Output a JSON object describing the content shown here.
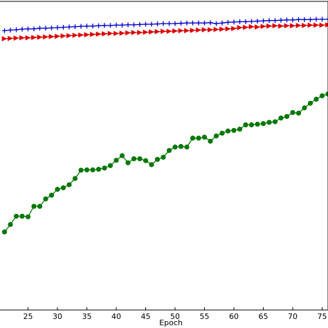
{
  "chart_data": {
    "type": "line",
    "title": "",
    "xlabel": "Epoch",
    "ylabel": "",
    "grid": false,
    "xlim": [
      20,
      76
    ],
    "ylim": [
      0,
      1
    ],
    "x_ticks": [
      25,
      30,
      35,
      40,
      45,
      50,
      55,
      60,
      65,
      70,
      75
    ],
    "x_tick_labels": [
      "25",
      "30",
      "35",
      "40",
      "45",
      "50",
      "55",
      "60",
      "65",
      "70",
      "75"
    ],
    "series": [
      {
        "color": "#0000cc",
        "marker": "plus",
        "x": [
          21,
          22,
          23,
          24,
          25,
          26,
          27,
          28,
          29,
          30,
          31,
          32,
          33,
          34,
          35,
          36,
          37,
          38,
          39,
          40,
          41,
          42,
          43,
          44,
          45,
          46,
          47,
          48,
          49,
          50,
          51,
          52,
          53,
          54,
          55,
          56,
          57,
          58,
          59,
          60,
          61,
          62,
          63,
          64,
          65,
          66,
          67,
          68,
          69,
          70,
          71,
          72,
          73,
          74,
          75,
          76
        ],
        "y": [
          0.905,
          0.907,
          0.908,
          0.91,
          0.911,
          0.911,
          0.913,
          0.913,
          0.914,
          0.915,
          0.916,
          0.917,
          0.918,
          0.919,
          0.92,
          0.92,
          0.921,
          0.922,
          0.922,
          0.923,
          0.923,
          0.924,
          0.924,
          0.925,
          0.926,
          0.926,
          0.927,
          0.928,
          0.928,
          0.928,
          0.929,
          0.93,
          0.93,
          0.93,
          0.93,
          0.931,
          0.928,
          0.93,
          0.932,
          0.933,
          0.934,
          0.934,
          0.935,
          0.936,
          0.937,
          0.938,
          0.938,
          0.939,
          0.94,
          0.94,
          0.941,
          0.941,
          0.941,
          0.942,
          0.942,
          0.942
        ]
      },
      {
        "color": "#dd0000",
        "marker": "triangle-right",
        "x": [
          21,
          22,
          23,
          24,
          25,
          26,
          27,
          28,
          29,
          30,
          31,
          32,
          33,
          34,
          35,
          36,
          37,
          38,
          39,
          40,
          41,
          42,
          43,
          44,
          45,
          46,
          47,
          48,
          49,
          50,
          51,
          52,
          53,
          54,
          55,
          56,
          57,
          58,
          59,
          60,
          61,
          62,
          63,
          64,
          65,
          66,
          67,
          68,
          69,
          70,
          71,
          72,
          73,
          74,
          75,
          76
        ],
        "y": [
          0.879,
          0.88,
          0.881,
          0.882,
          0.882,
          0.883,
          0.884,
          0.885,
          0.886,
          0.887,
          0.888,
          0.889,
          0.89,
          0.891,
          0.892,
          0.893,
          0.894,
          0.895,
          0.896,
          0.896,
          0.897,
          0.898,
          0.899,
          0.899,
          0.9,
          0.901,
          0.902,
          0.903,
          0.903,
          0.904,
          0.905,
          0.905,
          0.906,
          0.907,
          0.908,
          0.908,
          0.909,
          0.91,
          0.911,
          0.912,
          0.915,
          0.916,
          0.918,
          0.917,
          0.919,
          0.92,
          0.921,
          0.92,
          0.921,
          0.921,
          0.922,
          0.922,
          0.923,
          0.923,
          0.923,
          0.924
        ]
      },
      {
        "color": "#007700",
        "marker": "circle",
        "x": [
          21,
          22,
          23,
          24,
          25,
          26,
          27,
          28,
          29,
          30,
          31,
          32,
          33,
          34,
          35,
          36,
          37,
          38,
          39,
          40,
          41,
          42,
          43,
          44,
          45,
          46,
          47,
          48,
          49,
          50,
          51,
          52,
          53,
          54,
          55,
          56,
          57,
          58,
          59,
          60,
          61,
          62,
          63,
          64,
          65,
          66,
          67,
          68,
          69,
          70,
          71,
          72,
          73,
          74,
          75,
          76
        ],
        "y": [
          0.253,
          0.277,
          0.304,
          0.304,
          0.302,
          0.336,
          0.336,
          0.36,
          0.372,
          0.391,
          0.396,
          0.406,
          0.426,
          0.453,
          0.454,
          0.454,
          0.456,
          0.46,
          0.468,
          0.485,
          0.5,
          0.477,
          0.49,
          0.49,
          0.484,
          0.471,
          0.488,
          0.495,
          0.517,
          0.528,
          0.53,
          0.528,
          0.557,
          0.557,
          0.56,
          0.547,
          0.564,
          0.573,
          0.58,
          0.582,
          0.586,
          0.6,
          0.6,
          0.602,
          0.604,
          0.608,
          0.61,
          0.622,
          0.627,
          0.64,
          0.638,
          0.655,
          0.67,
          0.683,
          0.694,
          0.7
        ]
      }
    ]
  }
}
